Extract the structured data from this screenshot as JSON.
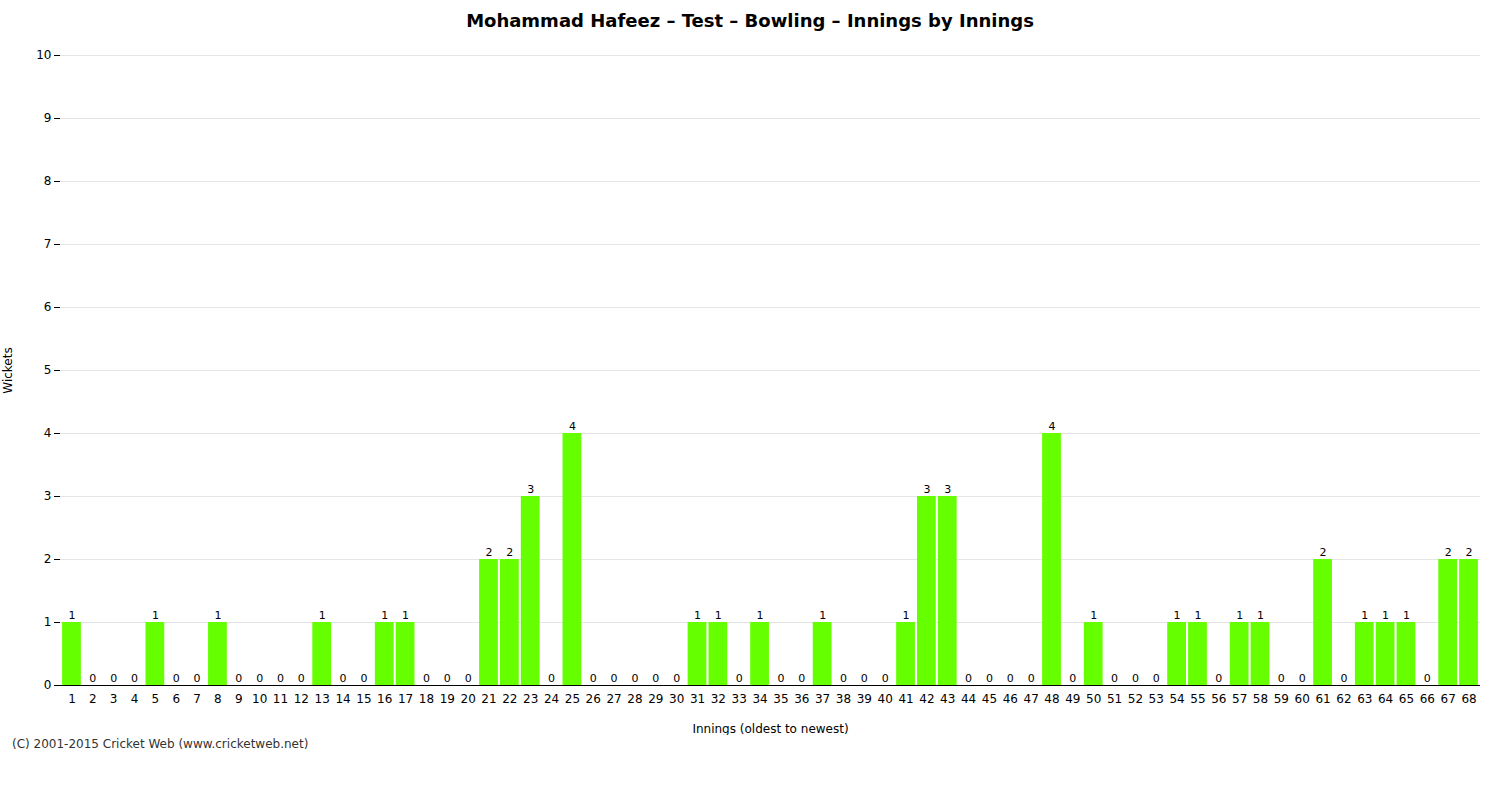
{
  "chart_data": {
    "type": "bar",
    "title": "Mohammad Hafeez – Test – Bowling – Innings by Innings",
    "xlabel": "Innings (oldest to newest)",
    "ylabel": "Wickets",
    "caption": "(C) 2001-2015 Cricket Web (www.cricketweb.net)",
    "categories": [
      "1",
      "2",
      "3",
      "4",
      "5",
      "6",
      "7",
      "8",
      "9",
      "10",
      "11",
      "12",
      "13",
      "14",
      "15",
      "16",
      "17",
      "18",
      "19",
      "20",
      "21",
      "22",
      "23",
      "24",
      "25",
      "26",
      "27",
      "28",
      "29",
      "30",
      "31",
      "32",
      "33",
      "34",
      "35",
      "36",
      "37",
      "38",
      "39",
      "40",
      "41",
      "42",
      "43",
      "44",
      "45",
      "46",
      "47",
      "48",
      "49",
      "50",
      "51",
      "52",
      "53",
      "54",
      "55",
      "56",
      "57",
      "58",
      "59",
      "60",
      "61",
      "62",
      "63",
      "64",
      "65",
      "66",
      "67",
      "68"
    ],
    "values": [
      1,
      0,
      0,
      0,
      1,
      0,
      0,
      1,
      0,
      0,
      0,
      0,
      1,
      0,
      0,
      1,
      1,
      0,
      0,
      0,
      2,
      2,
      3,
      0,
      4,
      0,
      0,
      0,
      0,
      0,
      1,
      1,
      0,
      1,
      0,
      0,
      1,
      0,
      0,
      0,
      1,
      3,
      3,
      0,
      0,
      0,
      0,
      4,
      0,
      1,
      0,
      0,
      0,
      1,
      1,
      0,
      1,
      1,
      0,
      0,
      2,
      0,
      1,
      1,
      1,
      0,
      2,
      2
    ],
    "color": "#66ff00",
    "ylim": [
      0,
      10
    ],
    "yticks": [
      0,
      1,
      2,
      3,
      4,
      5,
      6,
      7,
      8,
      9,
      10
    ],
    "grid": true,
    "data_labels": true
  }
}
